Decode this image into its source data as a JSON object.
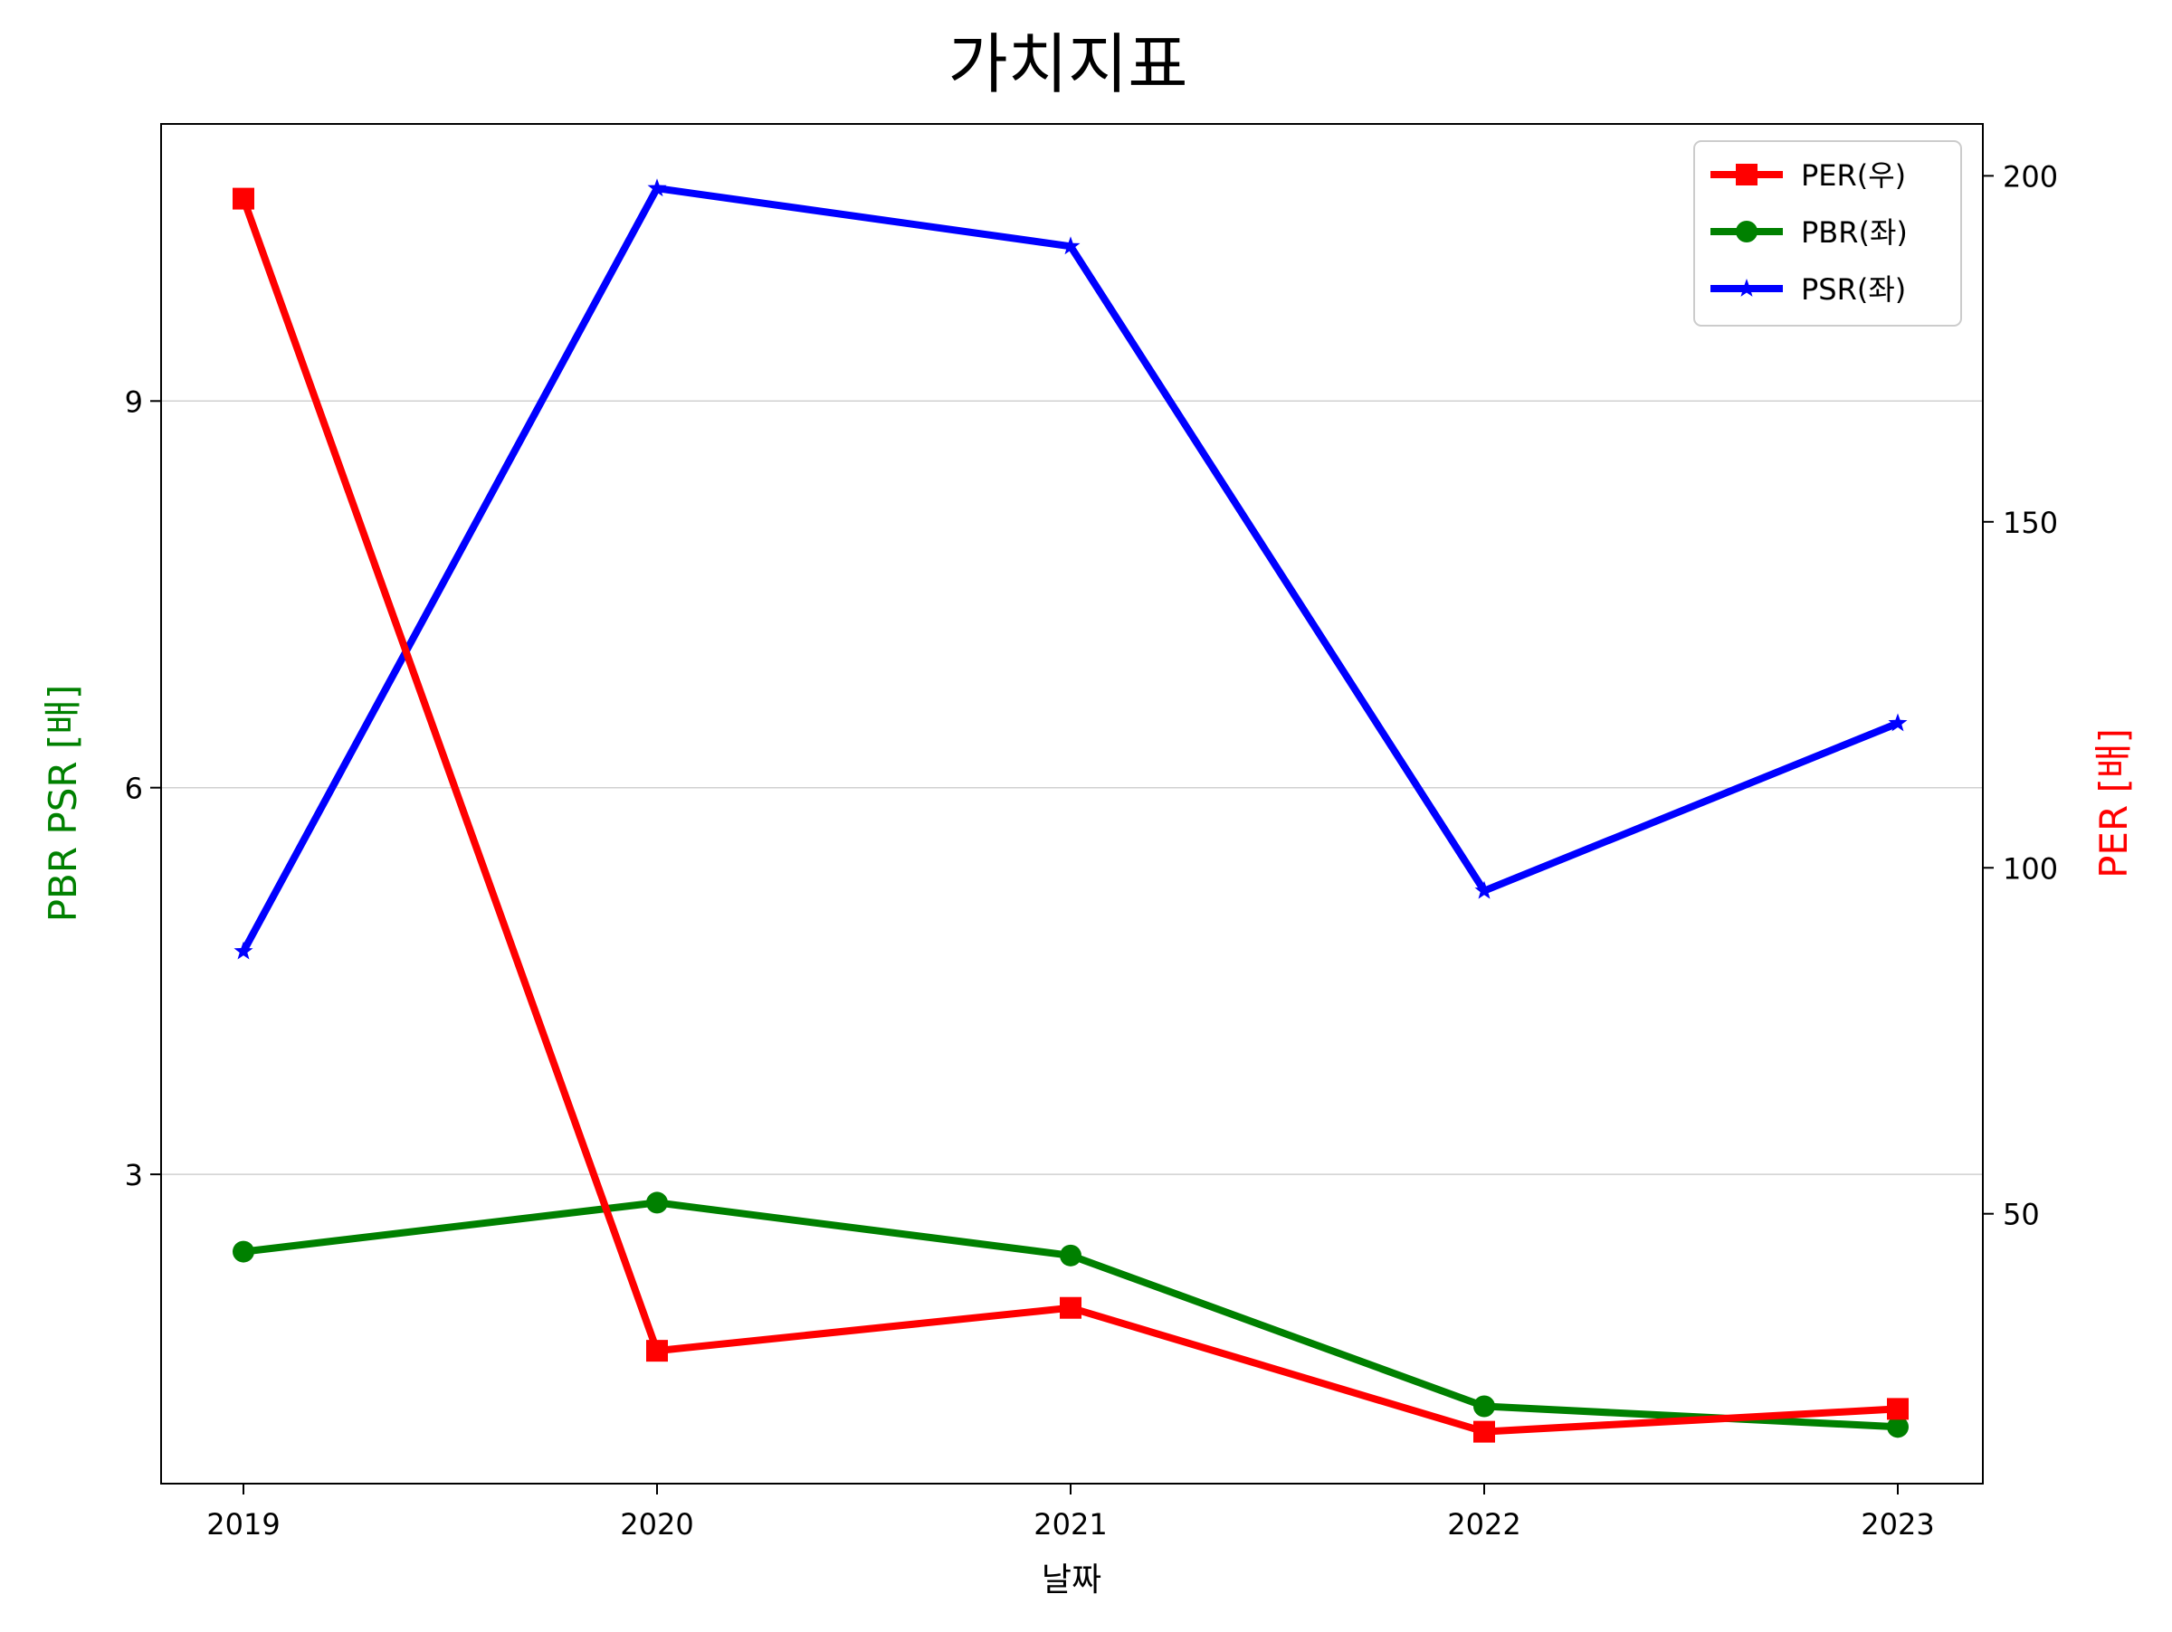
{
  "chart_data": {
    "type": "line",
    "title": "가치지표",
    "xlabel": "날짜",
    "ylabel_left": "PBR PSR [배]",
    "ylabel_right": "PER [배]",
    "categories": [
      "2019",
      "2020",
      "2021",
      "2022",
      "2023"
    ],
    "ylim_left": [
      0.6,
      11.15
    ],
    "ylim_right": [
      11.0,
      207.5
    ],
    "yticks_left": [
      3,
      6,
      9
    ],
    "yticks_right": [
      50,
      100,
      150,
      200
    ],
    "grid": "horizontal (left axis)",
    "legend_position": "top-right",
    "series": [
      {
        "name": "PER(우)",
        "axis": "right",
        "color": "#ff0000",
        "marker": "square",
        "values": [
          196.7,
          30.2,
          36.4,
          18.5,
          21.8
        ]
      },
      {
        "name": "PBR(좌)",
        "axis": "left",
        "color": "#008000",
        "marker": "circle",
        "values": [
          2.4,
          2.78,
          2.37,
          1.2,
          1.04
        ]
      },
      {
        "name": "PSR(좌)",
        "axis": "left",
        "color": "#0000ff",
        "marker": "star",
        "values": [
          4.73,
          10.65,
          10.2,
          5.2,
          6.5
        ]
      }
    ]
  }
}
